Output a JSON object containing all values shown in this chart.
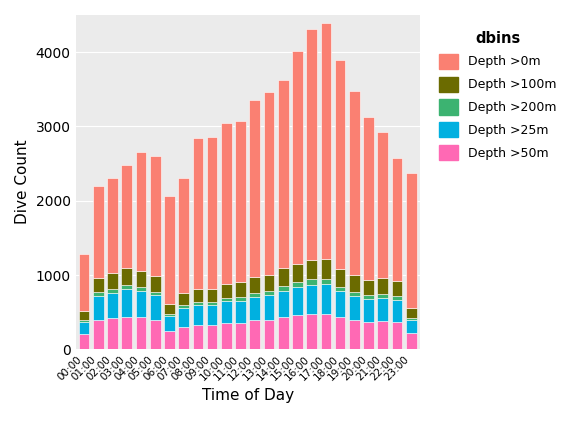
{
  "categories": [
    "00:00",
    "01:00",
    "02:00",
    "03:00",
    "04:00",
    "05:00",
    "06:00",
    "07:00",
    "08:00",
    "09:00",
    "10:00",
    "11:00",
    "12:00",
    "13:00",
    "14:00",
    "15:00",
    "16:00",
    "17:00",
    "18:00",
    "19:00",
    "20:00",
    "21:00",
    "22:00",
    "23:00"
  ],
  "totals": [
    1280,
    2200,
    2310,
    2480,
    2650,
    2600,
    2060,
    2300,
    2850,
    2860,
    3050,
    3070,
    3350,
    3460,
    3630,
    4020,
    4310,
    4390,
    3900,
    3480,
    3130,
    2920,
    2580,
    2380
  ],
  "seg_50m": [
    200,
    400,
    420,
    440,
    430,
    400,
    250,
    300,
    330,
    330,
    360,
    360,
    390,
    400,
    430,
    460,
    475,
    480,
    435,
    395,
    365,
    375,
    365,
    220
  ],
  "seg_25m": [
    170,
    320,
    340,
    370,
    350,
    325,
    200,
    250,
    265,
    265,
    285,
    295,
    315,
    325,
    360,
    375,
    395,
    395,
    345,
    325,
    310,
    315,
    305,
    175
  ],
  "seg_200m": [
    20,
    45,
    50,
    55,
    55,
    50,
    30,
    40,
    45,
    45,
    50,
    50,
    55,
    60,
    65,
    65,
    70,
    70,
    60,
    55,
    50,
    50,
    50,
    30
  ],
  "seg_100m": [
    120,
    200,
    215,
    225,
    220,
    210,
    135,
    165,
    175,
    175,
    190,
    195,
    210,
    215,
    240,
    255,
    265,
    270,
    240,
    220,
    210,
    215,
    205,
    130
  ],
  "color_0m": "#FA8072",
  "color_100m": "#6B6B00",
  "color_200m": "#3CB371",
  "color_25m": "#00B0E0",
  "color_50m": "#FF69B4",
  "legend_title": "dbins",
  "xlabel": "Time of Day",
  "ylabel": "Dive Count",
  "background_color": "#EBEBEB",
  "grid_color": "#FFFFFF"
}
